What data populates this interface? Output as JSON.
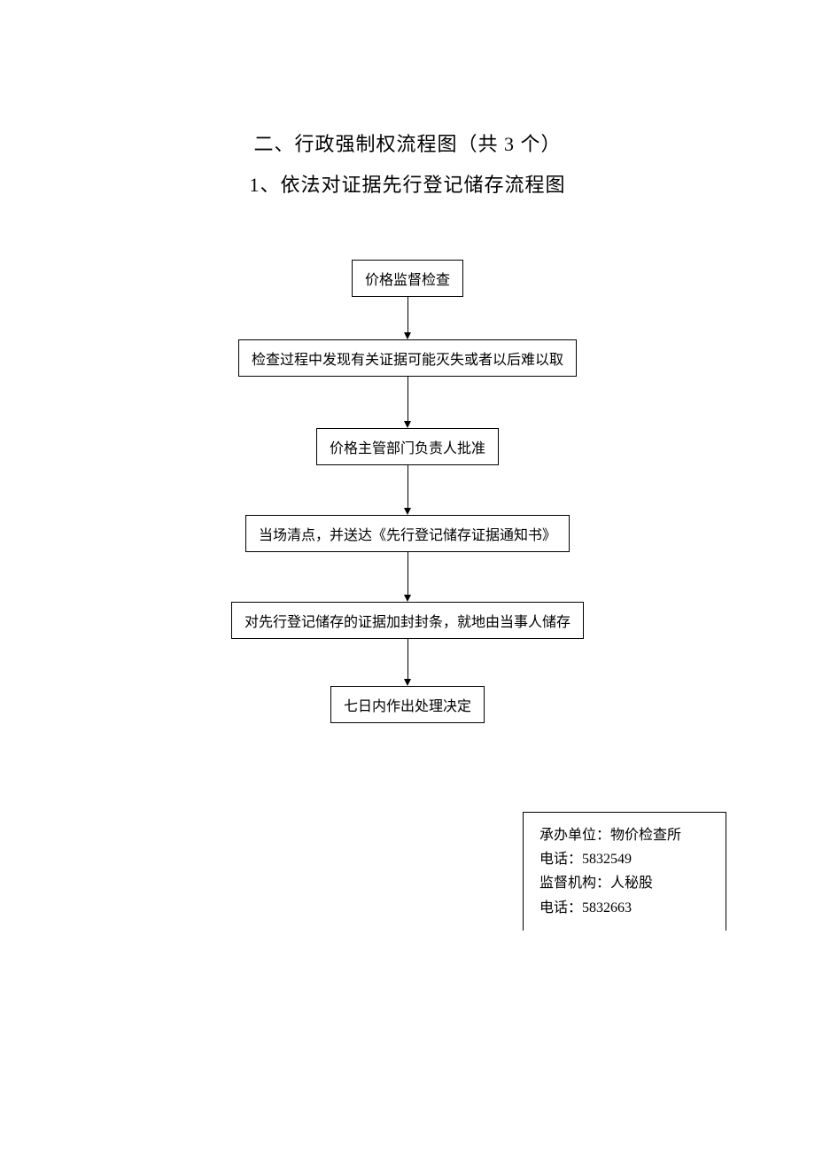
{
  "titles": {
    "main": "二、行政强制权流程图（共 3 个）",
    "sub": "1、依法对证据先行登记储存流程图"
  },
  "flowchart": {
    "type": "flowchart",
    "node_border_color": "#000000",
    "node_background": "#ffffff",
    "node_fontsize": 16,
    "arrow_color": "#000000",
    "nodes": [
      {
        "id": "n1",
        "label": "价格监督检查"
      },
      {
        "id": "n2",
        "label": "检查过程中发现有关证据可能灭失或者以后难以取"
      },
      {
        "id": "n3",
        "label": "价格主管部门负责人批准"
      },
      {
        "id": "n4",
        "label": "当场清点，并送达《先行登记储存证据通知书》"
      },
      {
        "id": "n5",
        "label": "对先行登记储存的证据加封封条，就地由当事人储存"
      },
      {
        "id": "n6",
        "label": "七日内作出处理决定"
      }
    ],
    "edges": [
      {
        "from": "n1",
        "to": "n2",
        "length": 40
      },
      {
        "from": "n2",
        "to": "n3",
        "length": 50
      },
      {
        "from": "n3",
        "to": "n4",
        "length": 48
      },
      {
        "from": "n4",
        "to": "n5",
        "length": 48
      },
      {
        "from": "n5",
        "to": "n6",
        "length": 45
      }
    ]
  },
  "infobox": {
    "border_color": "#000000",
    "fontsize": 16,
    "lines": [
      "承办单位：物价检查所",
      "电话：5832549",
      "监督机构：人秘股",
      "电话：5832663"
    ]
  }
}
